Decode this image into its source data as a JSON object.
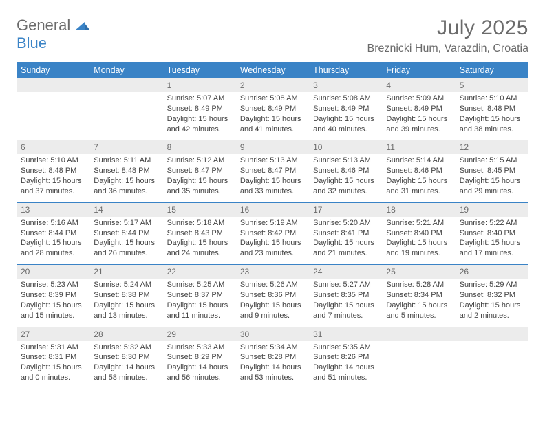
{
  "brand": {
    "g": "General",
    "b": "Blue"
  },
  "header": {
    "title": "July 2025",
    "location": "Breznicki Hum, Varazdin, Croatia"
  },
  "colors": {
    "accent": "#3a83c6",
    "header_bg": "#3a83c6",
    "header_fg": "#ffffff",
    "daynum_bg": "#ececec",
    "text": "#454545",
    "muted": "#6b6b6b"
  },
  "weekdays": [
    "Sunday",
    "Monday",
    "Tuesday",
    "Wednesday",
    "Thursday",
    "Friday",
    "Saturday"
  ],
  "weeks": [
    [
      null,
      null,
      {
        "n": "1",
        "sr": "Sunrise: 5:07 AM",
        "ss": "Sunset: 8:49 PM",
        "d1": "Daylight: 15 hours",
        "d2": "and 42 minutes."
      },
      {
        "n": "2",
        "sr": "Sunrise: 5:08 AM",
        "ss": "Sunset: 8:49 PM",
        "d1": "Daylight: 15 hours",
        "d2": "and 41 minutes."
      },
      {
        "n": "3",
        "sr": "Sunrise: 5:08 AM",
        "ss": "Sunset: 8:49 PM",
        "d1": "Daylight: 15 hours",
        "d2": "and 40 minutes."
      },
      {
        "n": "4",
        "sr": "Sunrise: 5:09 AM",
        "ss": "Sunset: 8:49 PM",
        "d1": "Daylight: 15 hours",
        "d2": "and 39 minutes."
      },
      {
        "n": "5",
        "sr": "Sunrise: 5:10 AM",
        "ss": "Sunset: 8:48 PM",
        "d1": "Daylight: 15 hours",
        "d2": "and 38 minutes."
      }
    ],
    [
      {
        "n": "6",
        "sr": "Sunrise: 5:10 AM",
        "ss": "Sunset: 8:48 PM",
        "d1": "Daylight: 15 hours",
        "d2": "and 37 minutes."
      },
      {
        "n": "7",
        "sr": "Sunrise: 5:11 AM",
        "ss": "Sunset: 8:48 PM",
        "d1": "Daylight: 15 hours",
        "d2": "and 36 minutes."
      },
      {
        "n": "8",
        "sr": "Sunrise: 5:12 AM",
        "ss": "Sunset: 8:47 PM",
        "d1": "Daylight: 15 hours",
        "d2": "and 35 minutes."
      },
      {
        "n": "9",
        "sr": "Sunrise: 5:13 AM",
        "ss": "Sunset: 8:47 PM",
        "d1": "Daylight: 15 hours",
        "d2": "and 33 minutes."
      },
      {
        "n": "10",
        "sr": "Sunrise: 5:13 AM",
        "ss": "Sunset: 8:46 PM",
        "d1": "Daylight: 15 hours",
        "d2": "and 32 minutes."
      },
      {
        "n": "11",
        "sr": "Sunrise: 5:14 AM",
        "ss": "Sunset: 8:46 PM",
        "d1": "Daylight: 15 hours",
        "d2": "and 31 minutes."
      },
      {
        "n": "12",
        "sr": "Sunrise: 5:15 AM",
        "ss": "Sunset: 8:45 PM",
        "d1": "Daylight: 15 hours",
        "d2": "and 29 minutes."
      }
    ],
    [
      {
        "n": "13",
        "sr": "Sunrise: 5:16 AM",
        "ss": "Sunset: 8:44 PM",
        "d1": "Daylight: 15 hours",
        "d2": "and 28 minutes."
      },
      {
        "n": "14",
        "sr": "Sunrise: 5:17 AM",
        "ss": "Sunset: 8:44 PM",
        "d1": "Daylight: 15 hours",
        "d2": "and 26 minutes."
      },
      {
        "n": "15",
        "sr": "Sunrise: 5:18 AM",
        "ss": "Sunset: 8:43 PM",
        "d1": "Daylight: 15 hours",
        "d2": "and 24 minutes."
      },
      {
        "n": "16",
        "sr": "Sunrise: 5:19 AM",
        "ss": "Sunset: 8:42 PM",
        "d1": "Daylight: 15 hours",
        "d2": "and 23 minutes."
      },
      {
        "n": "17",
        "sr": "Sunrise: 5:20 AM",
        "ss": "Sunset: 8:41 PM",
        "d1": "Daylight: 15 hours",
        "d2": "and 21 minutes."
      },
      {
        "n": "18",
        "sr": "Sunrise: 5:21 AM",
        "ss": "Sunset: 8:40 PM",
        "d1": "Daylight: 15 hours",
        "d2": "and 19 minutes."
      },
      {
        "n": "19",
        "sr": "Sunrise: 5:22 AM",
        "ss": "Sunset: 8:40 PM",
        "d1": "Daylight: 15 hours",
        "d2": "and 17 minutes."
      }
    ],
    [
      {
        "n": "20",
        "sr": "Sunrise: 5:23 AM",
        "ss": "Sunset: 8:39 PM",
        "d1": "Daylight: 15 hours",
        "d2": "and 15 minutes."
      },
      {
        "n": "21",
        "sr": "Sunrise: 5:24 AM",
        "ss": "Sunset: 8:38 PM",
        "d1": "Daylight: 15 hours",
        "d2": "and 13 minutes."
      },
      {
        "n": "22",
        "sr": "Sunrise: 5:25 AM",
        "ss": "Sunset: 8:37 PM",
        "d1": "Daylight: 15 hours",
        "d2": "and 11 minutes."
      },
      {
        "n": "23",
        "sr": "Sunrise: 5:26 AM",
        "ss": "Sunset: 8:36 PM",
        "d1": "Daylight: 15 hours",
        "d2": "and 9 minutes."
      },
      {
        "n": "24",
        "sr": "Sunrise: 5:27 AM",
        "ss": "Sunset: 8:35 PM",
        "d1": "Daylight: 15 hours",
        "d2": "and 7 minutes."
      },
      {
        "n": "25",
        "sr": "Sunrise: 5:28 AM",
        "ss": "Sunset: 8:34 PM",
        "d1": "Daylight: 15 hours",
        "d2": "and 5 minutes."
      },
      {
        "n": "26",
        "sr": "Sunrise: 5:29 AM",
        "ss": "Sunset: 8:32 PM",
        "d1": "Daylight: 15 hours",
        "d2": "and 2 minutes."
      }
    ],
    [
      {
        "n": "27",
        "sr": "Sunrise: 5:31 AM",
        "ss": "Sunset: 8:31 PM",
        "d1": "Daylight: 15 hours",
        "d2": "and 0 minutes."
      },
      {
        "n": "28",
        "sr": "Sunrise: 5:32 AM",
        "ss": "Sunset: 8:30 PM",
        "d1": "Daylight: 14 hours",
        "d2": "and 58 minutes."
      },
      {
        "n": "29",
        "sr": "Sunrise: 5:33 AM",
        "ss": "Sunset: 8:29 PM",
        "d1": "Daylight: 14 hours",
        "d2": "and 56 minutes."
      },
      {
        "n": "30",
        "sr": "Sunrise: 5:34 AM",
        "ss": "Sunset: 8:28 PM",
        "d1": "Daylight: 14 hours",
        "d2": "and 53 minutes."
      },
      {
        "n": "31",
        "sr": "Sunrise: 5:35 AM",
        "ss": "Sunset: 8:26 PM",
        "d1": "Daylight: 14 hours",
        "d2": "and 51 minutes."
      },
      null,
      null
    ]
  ]
}
